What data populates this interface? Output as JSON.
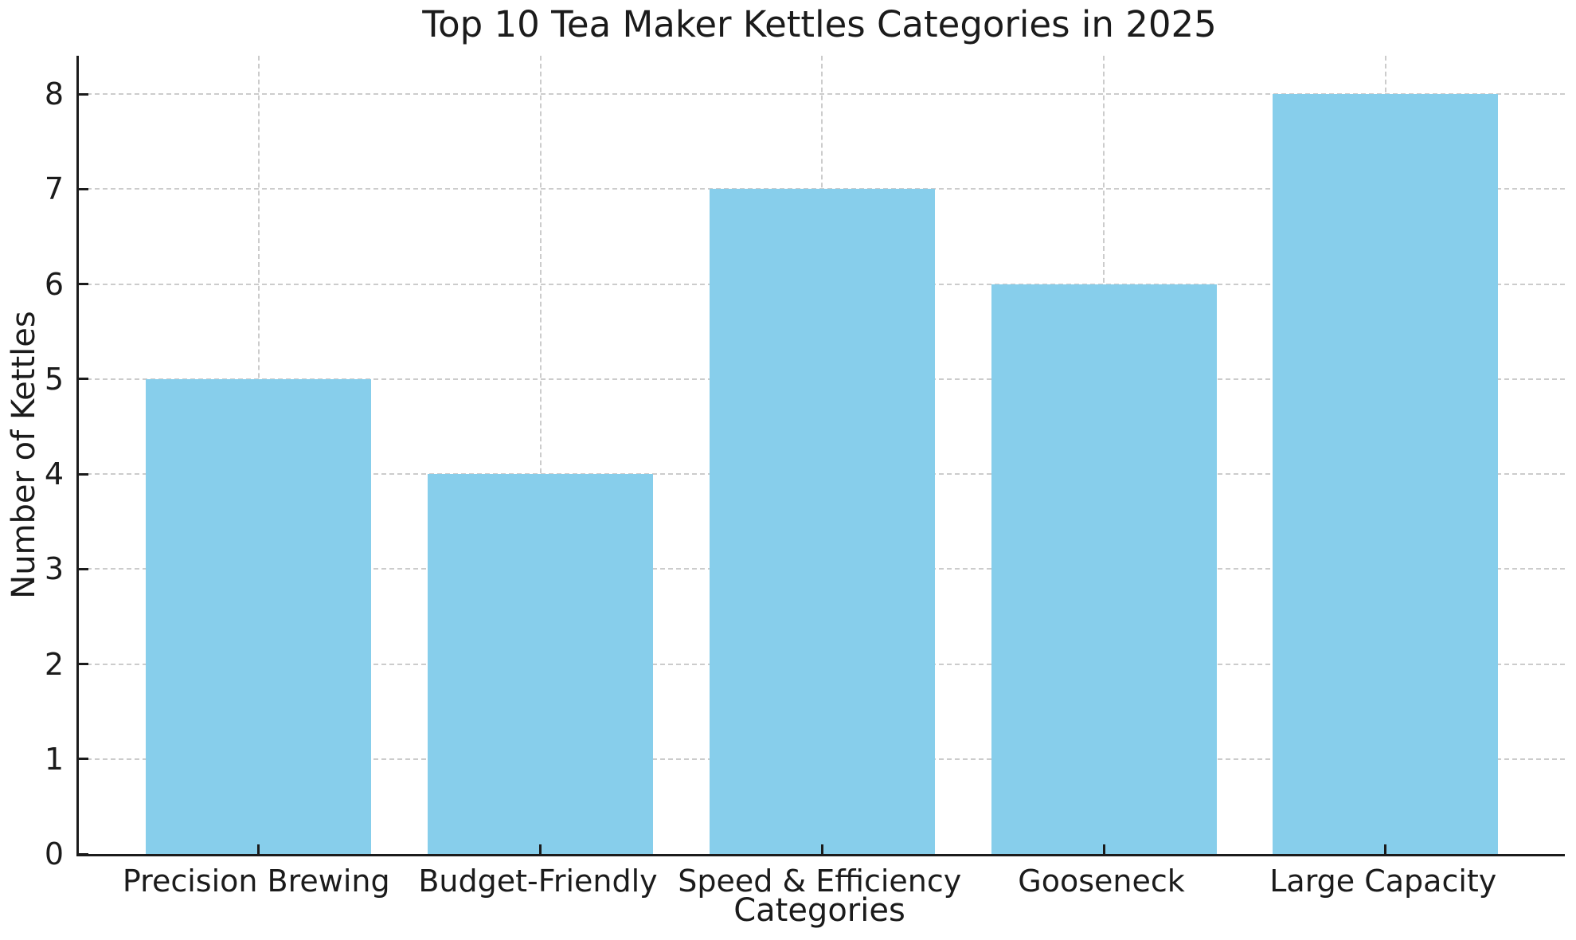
{
  "chart_data": {
    "type": "bar",
    "title": "Top 10 Tea Maker Kettles Categories in 2025",
    "xlabel": "Categories",
    "ylabel": "Number of Kettles",
    "categories": [
      "Precision Brewing",
      "Budget-Friendly",
      "Speed & Efficiency",
      "Gooseneck",
      "Large Capacity"
    ],
    "values": [
      5,
      4,
      7,
      6,
      8
    ],
    "yticks": [
      0,
      1,
      2,
      3,
      4,
      5,
      6,
      7,
      8
    ],
    "ylim": [
      0,
      8.4
    ],
    "grid": true,
    "grid_style": "dashed",
    "legend": "none",
    "bar_color": "#87CEEB",
    "grid_color": "#cccccc",
    "axis_color": "#1b1b1b",
    "background_color": "#ffffff"
  }
}
